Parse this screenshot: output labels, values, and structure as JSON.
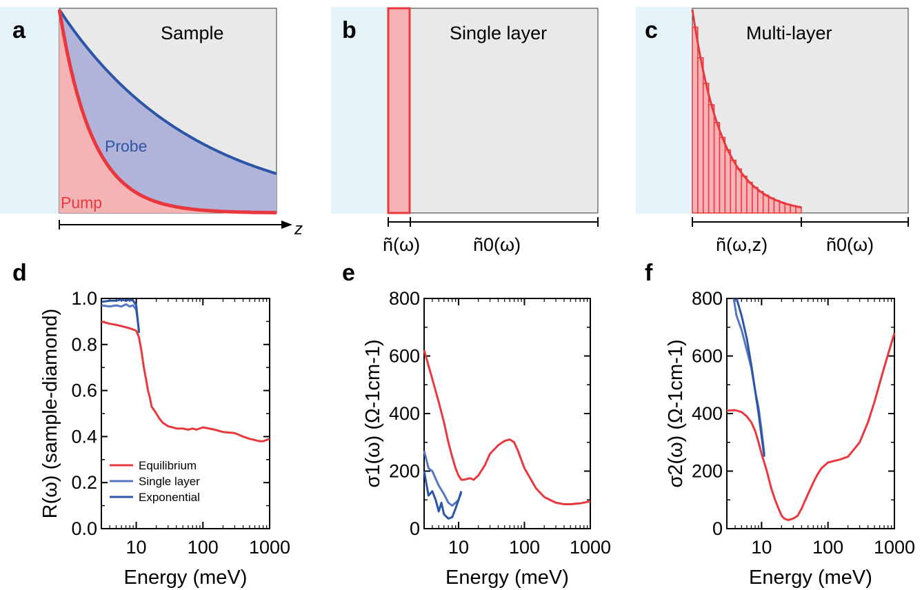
{
  "panels": {
    "a": {
      "letter": "a",
      "title": "Sample",
      "probe_label": "Probe",
      "pump_label": "Pump",
      "axis_label": "z"
    },
    "b": {
      "letter": "b",
      "title": "Single layer",
      "left_label": "ñ(ω)",
      "right_label": "ñ0(ω)"
    },
    "c": {
      "letter": "c",
      "title": "Multi-layer",
      "left_label": "ñ(ω,z)",
      "right_label": "ñ0(ω)"
    }
  },
  "colors": {
    "red": "#e8383d",
    "blue": "#2c55a8",
    "lightblue": "#5576c4",
    "substrate": "#e3f3f7",
    "sample": "#e9e9e9",
    "pump_fill": "#f6b3b5",
    "probe_fill": "#b1b3d9"
  },
  "chart_data": [
    {
      "panel": "d",
      "type": "line",
      "xscale": "log",
      "xlim": [
        3,
        1000
      ],
      "ylim": [
        0,
        1.0
      ],
      "xticks": [
        "10",
        "100",
        "1000"
      ],
      "yticks": [
        "0.0",
        "0.2",
        "0.4",
        "0.6",
        "0.8",
        "1.0"
      ],
      "xlabel": "Energy (meV)",
      "ylabel": "R(ω) (sample-diamond)",
      "legend": "bottom-left",
      "series": [
        {
          "name": "Equilibrium",
          "color": "#e8383d",
          "x": [
            3,
            4,
            5,
            6,
            7,
            8,
            9,
            10,
            11,
            12,
            13,
            14,
            15,
            16,
            17,
            18,
            20,
            22,
            25,
            30,
            35,
            40,
            50,
            60,
            70,
            80,
            100,
            150,
            200,
            300,
            400,
            500,
            600,
            700,
            800,
            1000
          ],
          "y": [
            0.9,
            0.89,
            0.885,
            0.88,
            0.875,
            0.87,
            0.865,
            0.86,
            0.83,
            0.77,
            0.7,
            0.65,
            0.6,
            0.57,
            0.53,
            0.52,
            0.5,
            0.48,
            0.46,
            0.445,
            0.44,
            0.435,
            0.435,
            0.43,
            0.435,
            0.43,
            0.44,
            0.43,
            0.42,
            0.415,
            0.4,
            0.39,
            0.385,
            0.38,
            0.38,
            0.39
          ]
        },
        {
          "name": "Single layer",
          "color": "#5576c4",
          "x": [
            3,
            4,
            5,
            6,
            7,
            8,
            9,
            10,
            11
          ],
          "y": [
            0.97,
            0.965,
            0.97,
            0.965,
            0.975,
            0.965,
            0.97,
            0.95,
            0.86
          ]
        },
        {
          "name": "Exponential",
          "color": "#2c55a8",
          "x": [
            3,
            4,
            5,
            6,
            7,
            8,
            9,
            10,
            11
          ],
          "y": [
            0.985,
            0.99,
            0.99,
            0.995,
            0.99,
            0.995,
            0.99,
            0.97,
            0.85
          ]
        }
      ]
    },
    {
      "panel": "e",
      "type": "line",
      "xscale": "log",
      "xlim": [
        3,
        1000
      ],
      "ylim": [
        0,
        800
      ],
      "xticks": [
        "10",
        "100",
        "1000"
      ],
      "yticks": [
        "0",
        "200",
        "400",
        "600",
        "800"
      ],
      "xlabel": "Energy (meV)",
      "ylabel": "σ1(ω) (Ω-1cm-1)",
      "series": [
        {
          "name": "Equilibrium",
          "color": "#e8383d",
          "x": [
            3,
            4,
            5,
            6,
            7,
            8,
            9,
            10,
            11,
            12,
            13,
            15,
            17,
            20,
            25,
            30,
            40,
            50,
            60,
            70,
            80,
            100,
            150,
            200,
            300,
            400,
            500,
            700,
            1000
          ],
          "y": [
            620,
            520,
            440,
            370,
            300,
            250,
            210,
            185,
            170,
            170,
            172,
            175,
            170,
            185,
            220,
            260,
            290,
            305,
            310,
            300,
            270,
            210,
            140,
            110,
            90,
            85,
            85,
            88,
            95
          ]
        },
        {
          "name": "Single layer",
          "color": "#5576c4",
          "x": [
            3,
            3.5,
            4,
            5,
            6,
            7,
            8,
            9,
            10,
            11
          ],
          "y": [
            270,
            210,
            200,
            150,
            120,
            90,
            80,
            90,
            100,
            125
          ]
        },
        {
          "name": "Exponential",
          "color": "#2c55a8",
          "x": [
            3,
            3.5,
            4,
            4.5,
            5,
            5.5,
            6,
            7,
            8,
            9,
            10,
            11
          ],
          "y": [
            200,
            115,
            130,
            100,
            60,
            90,
            50,
            35,
            40,
            70,
            100,
            130
          ]
        }
      ]
    },
    {
      "panel": "f",
      "type": "line",
      "xscale": "log",
      "xlim": [
        3,
        1000
      ],
      "ylim": [
        0,
        800
      ],
      "xticks": [
        "10",
        "100",
        "1000"
      ],
      "yticks": [
        "0",
        "200",
        "400",
        "600",
        "800"
      ],
      "xlabel": "Energy (meV)",
      "ylabel": "σ2(ω) (Ω-1cm-1)",
      "series": [
        {
          "name": "Equilibrium",
          "color": "#e8383d",
          "x": [
            3,
            4,
            5,
            6,
            7,
            8,
            9,
            10,
            12,
            14,
            16,
            18,
            20,
            22,
            25,
            30,
            35,
            40,
            50,
            60,
            70,
            80,
            100,
            150,
            200,
            300,
            400,
            500,
            700,
            1000
          ],
          "y": [
            410,
            412,
            405,
            390,
            370,
            340,
            300,
            260,
            200,
            140,
            100,
            70,
            45,
            35,
            30,
            35,
            45,
            70,
            120,
            160,
            190,
            210,
            230,
            240,
            250,
            300,
            370,
            440,
            560,
            680
          ]
        },
        {
          "name": "Single layer",
          "color": "#5576c4",
          "x": [
            3.8,
            4.2,
            5,
            6,
            7,
            8,
            9,
            10,
            11
          ],
          "y": [
            800,
            740,
            690,
            620,
            560,
            480,
            420,
            340,
            260
          ]
        },
        {
          "name": "Exponential",
          "color": "#2c55a8",
          "x": [
            4.2,
            5,
            6,
            7,
            8,
            9,
            10,
            11
          ],
          "y": [
            800,
            740,
            660,
            570,
            480,
            400,
            320,
            250
          ]
        }
      ]
    }
  ]
}
